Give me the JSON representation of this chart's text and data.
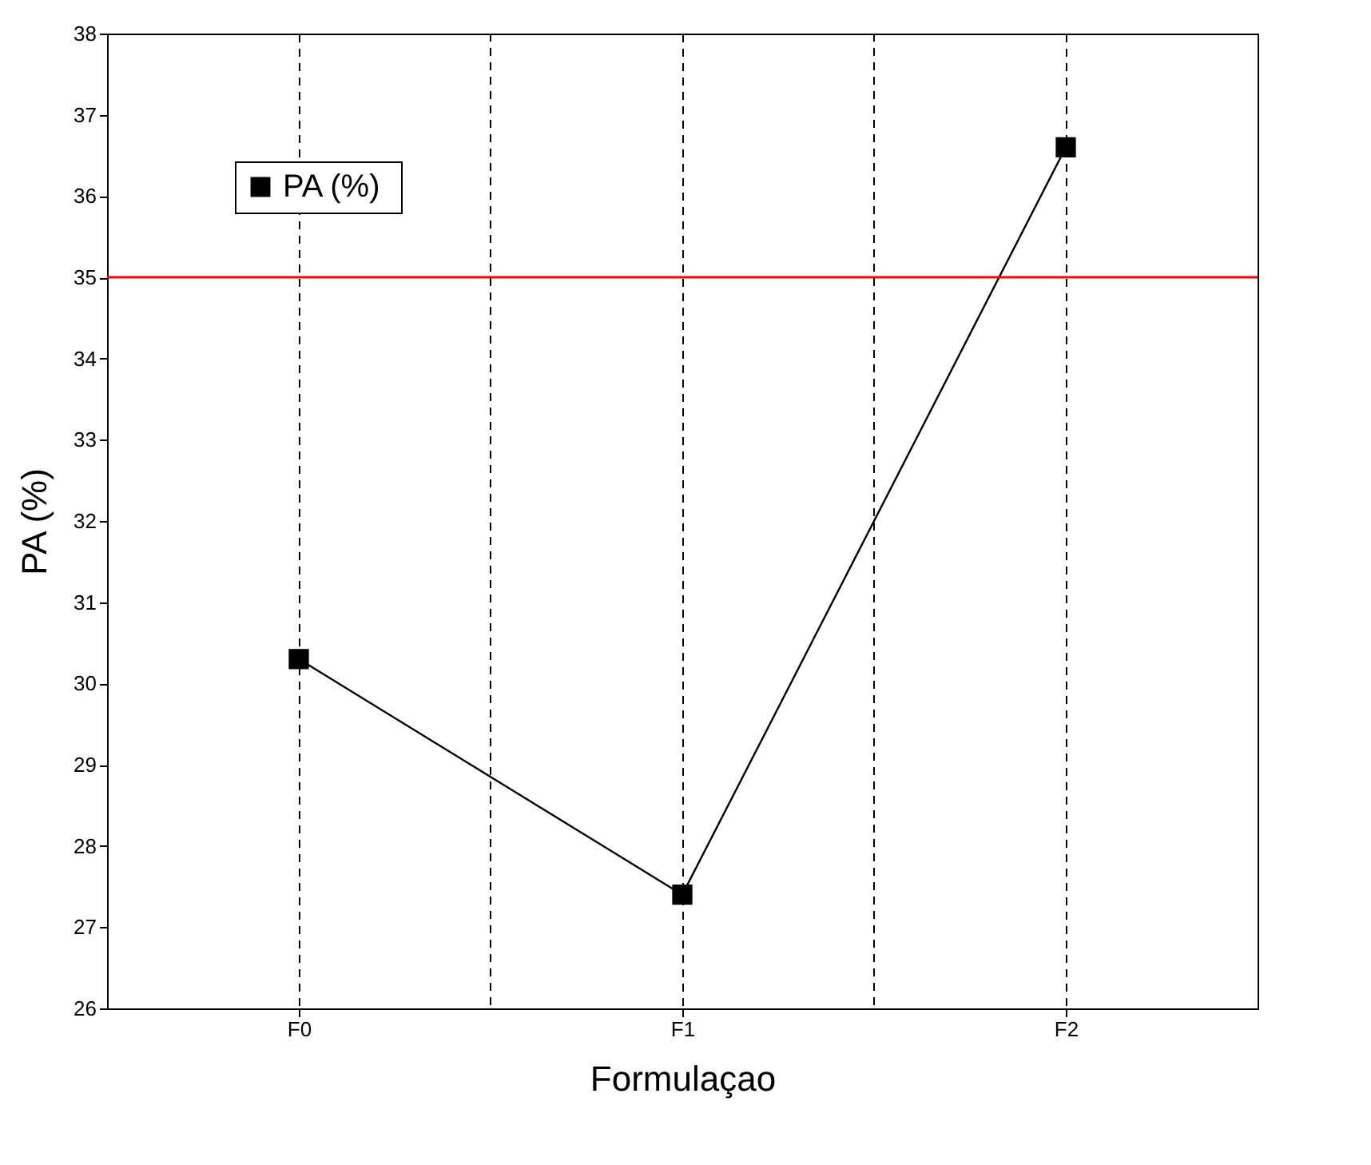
{
  "chart_data": {
    "type": "line",
    "xlabel": "Formulaçao",
    "ylabel": "PA (%)",
    "categories": [
      "F0",
      "F1",
      "F2"
    ],
    "series": [
      {
        "name": "PA  (%)",
        "color": "#000000",
        "values": [
          30.3,
          27.4,
          36.6
        ]
      }
    ],
    "ylim": [
      26,
      38
    ],
    "yticks": [
      26,
      27,
      28,
      29,
      30,
      31,
      32,
      33,
      34,
      35,
      36,
      37,
      38
    ],
    "ref_lines": [
      {
        "axis": "y",
        "value": 35,
        "color": "#ff0000"
      }
    ],
    "grid": "x",
    "legend": "top left",
    "marker": "square",
    "line_style": "solid"
  }
}
